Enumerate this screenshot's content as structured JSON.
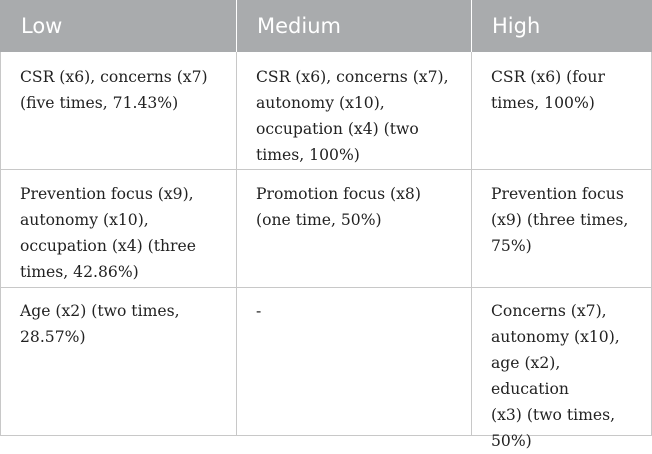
{
  "table": {
    "headers": [
      "Low",
      "Medium",
      "High"
    ],
    "rows": [
      [
        "CSR (x6), concerns (x7)\n(five times, 71.43%)",
        "CSR (x6), concerns (x7),\nautonomy (x10),\noccupation (x4) (two\ntimes, 100%)",
        "CSR (x6) (four\ntimes, 100%)"
      ],
      [
        "Prevention focus (x9),\nautonomy (x10),\noccupation (x4) (three\ntimes, 42.86%)",
        "Promotion focus (x8)\n(one time, 50%)",
        "Prevention focus\n(x9) (three times,\n75%)"
      ],
      [
        "Age (x2) (two times,\n28.57%)",
        "-",
        "Concerns (x7),\nautonomy (x10),\nage (x2), education\n(x3) (two times,\n50%)"
      ]
    ]
  }
}
